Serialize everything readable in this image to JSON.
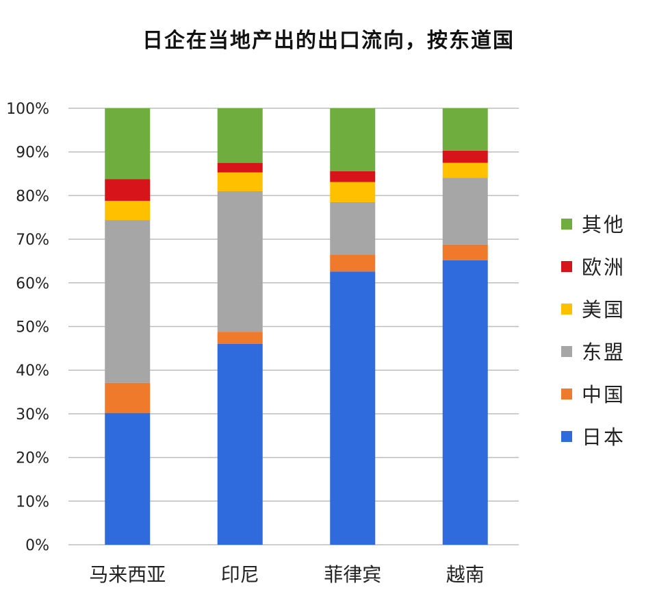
{
  "chart_data": {
    "type": "bar",
    "stacked": true,
    "title": "日企在当地产出的出口流向，按东道国",
    "xlabel": "",
    "ylabel": "",
    "ylim": [
      0,
      100
    ],
    "y_ticks": [
      "0%",
      "10%",
      "20%",
      "30%",
      "40%",
      "50%",
      "60%",
      "70%",
      "80%",
      "90%",
      "100%"
    ],
    "grid": true,
    "legend_position": "right",
    "categories": [
      "马来西亚",
      "印尼",
      "菲律宾",
      "越南"
    ],
    "series": [
      {
        "name": "日本",
        "color": "#2F6BDC",
        "values": [
          30.2,
          46.0,
          62.6,
          65.2
        ]
      },
      {
        "name": "中国",
        "color": "#F07A2B",
        "values": [
          6.9,
          2.8,
          3.9,
          3.6
        ]
      },
      {
        "name": "东盟",
        "color": "#A6A6A6",
        "values": [
          37.3,
          32.2,
          12.0,
          15.3
        ]
      },
      {
        "name": "美国",
        "color": "#FFC000",
        "values": [
          4.4,
          4.3,
          4.6,
          3.4
        ]
      },
      {
        "name": "欧洲",
        "color": "#D7141A",
        "values": [
          5.0,
          2.2,
          2.5,
          2.8
        ]
      },
      {
        "name": "其他",
        "color": "#6FAD3F",
        "values": [
          16.2,
          12.5,
          14.4,
          9.7
        ]
      }
    ]
  }
}
